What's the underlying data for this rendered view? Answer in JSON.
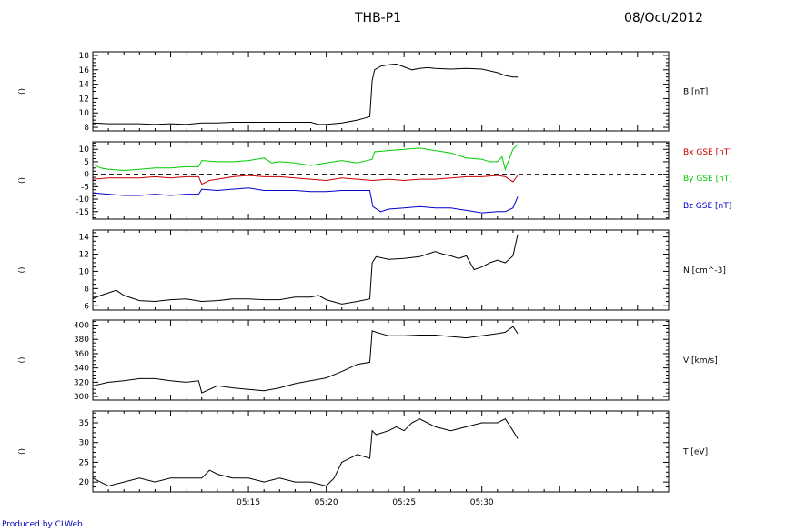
{
  "header": {
    "title": "THB-P1",
    "date": "08/Oct/2012"
  },
  "footer": {
    "credit": "Produced by CLWeb"
  },
  "panel_tag": "()",
  "time_axis": {
    "range_min": [
      5.0,
      42.0
    ],
    "labels": [
      "05:15",
      "05:20",
      "05:25",
      "05:30"
    ],
    "label_minutes": [
      15,
      20,
      25,
      30
    ]
  },
  "chart_data": [
    {
      "type": "line",
      "name": "B",
      "ylabel": "B [nT]",
      "ylim": [
        7.5,
        18.5
      ],
      "yticks": [
        8,
        10,
        12,
        14,
        16,
        18
      ],
      "grid": false,
      "series": [
        {
          "name": "B [nT]",
          "color": "#000000",
          "x": [
            5.0,
            6.0,
            7.0,
            8.0,
            9.0,
            10.0,
            11.0,
            12.0,
            13.0,
            14.0,
            15.0,
            16.0,
            17.0,
            18.0,
            19.0,
            19.5,
            20.0,
            21.0,
            22.0,
            22.5,
            22.8,
            22.95,
            23.1,
            23.5,
            24.0,
            24.5,
            25.0,
            25.5,
            26.0,
            26.5,
            27.0,
            28.0,
            29.0,
            30.0,
            31.0,
            31.5,
            32.0,
            32.3
          ],
          "y": [
            8.6,
            8.5,
            8.5,
            8.5,
            8.4,
            8.5,
            8.4,
            8.6,
            8.6,
            8.7,
            8.7,
            8.7,
            8.7,
            8.7,
            8.7,
            8.4,
            8.4,
            8.6,
            9.0,
            9.3,
            9.5,
            14.5,
            16.0,
            16.5,
            16.7,
            16.8,
            16.4,
            16.0,
            16.2,
            16.3,
            16.2,
            16.1,
            16.2,
            16.1,
            15.6,
            15.2,
            15.0,
            15.0
          ]
        }
      ]
    },
    {
      "type": "line",
      "name": "Bgse",
      "ylim": [
        -18,
        13
      ],
      "yticks": [
        -15,
        -10,
        -5,
        0,
        5,
        10
      ],
      "zero_line": true,
      "grid": false,
      "series": [
        {
          "name": "Bx GSE [nT]",
          "color": "#cc0000",
          "x": [
            5.0,
            6.0,
            7.0,
            8.0,
            9.0,
            10.0,
            11.0,
            11.8,
            12.0,
            12.5,
            13.0,
            14.0,
            15.0,
            16.0,
            17.0,
            18.0,
            19.0,
            20.0,
            21.0,
            22.0,
            23.0,
            24.0,
            25.0,
            26.0,
            27.0,
            28.0,
            29.0,
            30.0,
            31.0,
            31.5,
            32.0,
            32.3
          ],
          "y": [
            -2.0,
            -1.5,
            -1.5,
            -1.5,
            -1.0,
            -1.5,
            -1.0,
            -1.0,
            -4.0,
            -2.5,
            -2.0,
            -1.0,
            -0.5,
            -1.0,
            -1.0,
            -1.5,
            -2.0,
            -2.5,
            -1.5,
            -2.0,
            -2.5,
            -2.0,
            -2.5,
            -2.0,
            -2.0,
            -1.5,
            -1.0,
            -1.0,
            -0.5,
            -1.0,
            -3.0,
            -0.5
          ]
        },
        {
          "name": "By GSE [nT]",
          "color": "#00cc00",
          "x": [
            5.0,
            5.5,
            6.0,
            7.0,
            8.0,
            9.0,
            10.0,
            11.0,
            11.8,
            12.0,
            13.0,
            14.0,
            15.0,
            16.0,
            16.5,
            17.0,
            18.0,
            19.0,
            20.0,
            21.0,
            22.0,
            22.95,
            23.1,
            24.0,
            25.0,
            26.0,
            27.0,
            28.0,
            29.0,
            30.0,
            30.5,
            31.0,
            31.3,
            31.5,
            32.0,
            32.3
          ],
          "y": [
            4.0,
            2.5,
            2.0,
            1.5,
            2.0,
            2.5,
            2.5,
            3.0,
            3.0,
            5.5,
            5.0,
            5.0,
            5.5,
            6.5,
            4.5,
            5.0,
            4.5,
            3.5,
            4.5,
            5.5,
            4.5,
            6.0,
            9.0,
            9.5,
            10.0,
            10.5,
            9.5,
            8.5,
            6.5,
            6.0,
            5.0,
            5.0,
            7.0,
            2.0,
            10.0,
            12.0
          ]
        },
        {
          "name": "Bz GSE [nT]",
          "color": "#0000cc",
          "x": [
            5.0,
            6.0,
            7.0,
            8.0,
            9.0,
            10.0,
            11.0,
            11.8,
            12.0,
            13.0,
            14.0,
            15.0,
            16.0,
            17.0,
            18.0,
            19.0,
            20.0,
            21.0,
            22.0,
            22.8,
            23.0,
            23.5,
            24.0,
            25.0,
            26.0,
            27.0,
            28.0,
            29.0,
            30.0,
            31.0,
            31.5,
            32.0,
            32.3
          ],
          "y": [
            -7.5,
            -8.0,
            -8.5,
            -8.5,
            -8.0,
            -8.5,
            -8.0,
            -8.0,
            -6.0,
            -6.5,
            -6.0,
            -5.5,
            -6.5,
            -6.5,
            -6.5,
            -7.0,
            -7.0,
            -6.5,
            -6.5,
            -6.5,
            -13.0,
            -15.0,
            -14.0,
            -13.5,
            -13.0,
            -13.5,
            -13.5,
            -14.5,
            -15.5,
            -15.0,
            -15.0,
            -13.5,
            -9.0
          ]
        }
      ]
    },
    {
      "type": "line",
      "name": "N",
      "ylabel": "N [cm^-3]",
      "ylim": [
        5.5,
        14.8
      ],
      "yticks": [
        6,
        8,
        10,
        12,
        14
      ],
      "grid": false,
      "series": [
        {
          "name": "N [cm^-3]",
          "color": "#000000",
          "x": [
            5.0,
            5.5,
            6.0,
            6.5,
            7.0,
            8.0,
            9.0,
            10.0,
            11.0,
            12.0,
            13.0,
            14.0,
            15.0,
            16.0,
            17.0,
            18.0,
            19.0,
            19.5,
            20.0,
            21.0,
            22.0,
            22.8,
            22.95,
            23.2,
            24.0,
            25.0,
            26.0,
            26.5,
            27.0,
            27.5,
            28.0,
            28.5,
            29.0,
            29.5,
            30.0,
            30.5,
            31.0,
            31.5,
            32.0,
            32.3
          ],
          "y": [
            6.8,
            7.2,
            7.5,
            7.8,
            7.2,
            6.6,
            6.5,
            6.7,
            6.8,
            6.5,
            6.6,
            6.8,
            6.8,
            6.7,
            6.7,
            7.0,
            7.0,
            7.2,
            6.7,
            6.2,
            6.5,
            6.8,
            11.0,
            11.7,
            11.4,
            11.5,
            11.7,
            12.0,
            12.3,
            12.0,
            11.8,
            11.5,
            11.8,
            10.2,
            10.5,
            11.0,
            11.3,
            11.0,
            11.8,
            14.3
          ]
        }
      ]
    },
    {
      "type": "line",
      "name": "V",
      "ylabel": "V [km/s]",
      "ylim": [
        295,
        407
      ],
      "yticks": [
        300,
        320,
        340,
        360,
        380,
        400
      ],
      "grid": false,
      "series": [
        {
          "name": "V [km/s]",
          "color": "#000000",
          "x": [
            5.0,
            6.0,
            7.0,
            8.0,
            9.0,
            10.0,
            11.0,
            11.8,
            12.0,
            13.0,
            14.0,
            15.0,
            16.0,
            17.0,
            18.0,
            19.0,
            20.0,
            21.0,
            22.0,
            22.8,
            22.95,
            23.2,
            24.0,
            25.0,
            26.0,
            27.0,
            28.0,
            29.0,
            30.0,
            31.0,
            31.5,
            32.0,
            32.3
          ],
          "y": [
            315,
            320,
            322,
            325,
            325,
            322,
            320,
            322,
            305,
            315,
            312,
            310,
            308,
            312,
            318,
            322,
            326,
            335,
            345,
            348,
            392,
            390,
            385,
            385,
            386,
            386,
            384,
            382,
            385,
            388,
            390,
            398,
            388
          ]
        }
      ]
    },
    {
      "type": "line",
      "name": "T",
      "ylabel": "T [eV]",
      "ylim": [
        17.5,
        38
      ],
      "yticks": [
        20,
        25,
        30,
        35
      ],
      "grid": false,
      "series": [
        {
          "name": "T [eV]",
          "color": "#000000",
          "x": [
            5.0,
            6.0,
            7.0,
            8.0,
            9.0,
            10.0,
            11.0,
            12.0,
            12.5,
            13.0,
            14.0,
            15.0,
            16.0,
            17.0,
            18.0,
            19.0,
            20.0,
            20.5,
            21.0,
            21.5,
            22.0,
            22.8,
            22.95,
            23.2,
            24.0,
            24.5,
            25.0,
            25.5,
            26.0,
            26.5,
            27.0,
            28.0,
            29.0,
            30.0,
            31.0,
            31.5,
            32.0,
            32.3
          ],
          "y": [
            21,
            19,
            20,
            21,
            20,
            21,
            21,
            21,
            23,
            22,
            21,
            21,
            20,
            21,
            20,
            20,
            19,
            21,
            25,
            26,
            27,
            26,
            33,
            32,
            33,
            34,
            33,
            35,
            36,
            35,
            34,
            33,
            34,
            35,
            35,
            36,
            33,
            31
          ]
        }
      ]
    }
  ]
}
